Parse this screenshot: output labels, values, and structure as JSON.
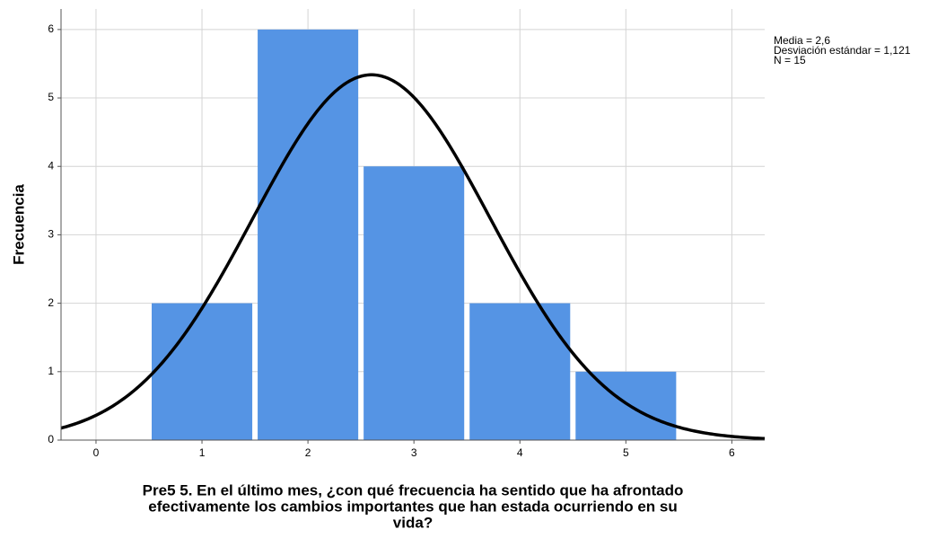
{
  "chart_data": {
    "type": "histogram",
    "y_label": "Frecuencia",
    "x_label": [
      "Pre5 5. En el último mes, ¿con qué frecuencia ha sentido que ha afrontado",
      "efectivamente los cambios importantes que han estada ocurriendo en su",
      "vida?"
    ],
    "bins": [
      0.5,
      1.5,
      2.5,
      3.5,
      4.5,
      5.5
    ],
    "values": [
      2,
      6,
      4,
      2,
      1
    ],
    "color": "#5594e4",
    "curve": {
      "mean": 2.6,
      "sd": 1.121,
      "n": 15,
      "color": "#000000"
    },
    "stats": [
      "Media = 2,6",
      "Desviación estándar = 1,121",
      "N = 15"
    ],
    "xlim": [
      -0.33,
      6.31
    ],
    "xticks": [
      0,
      1,
      2,
      3,
      4,
      5,
      6
    ],
    "ylim": [
      0,
      6.3
    ],
    "yticks": [
      0,
      1,
      2,
      3,
      4,
      5,
      6
    ],
    "grid": true
  }
}
